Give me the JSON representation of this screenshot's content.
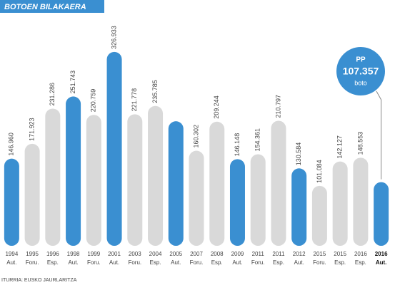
{
  "chart_data": {
    "type": "bar",
    "title": "BOTOEN BILAKAERA",
    "categories": [
      [
        "1994",
        "Aut."
      ],
      [
        "1995",
        "Foru."
      ],
      [
        "1996",
        "Esp."
      ],
      [
        "1998",
        "Aut."
      ],
      [
        "1999",
        "Foru."
      ],
      [
        "2001",
        "Aut."
      ],
      [
        "2003",
        "Foru."
      ],
      [
        "2004",
        "Esp."
      ],
      [
        "2005",
        "Aut."
      ],
      [
        "2007",
        "Foru."
      ],
      [
        "2008",
        "Esp."
      ],
      [
        "2009",
        "Aut."
      ],
      [
        "2011",
        "Foru."
      ],
      [
        "2011",
        "Esp."
      ],
      [
        "2012",
        "Aut."
      ],
      [
        "2015",
        "Foru."
      ],
      [
        "2015",
        "Esp."
      ],
      [
        "2016",
        "Esp."
      ],
      [
        "2016",
        "Aut."
      ]
    ],
    "values": [
      146960,
      171923,
      231286,
      251743,
      220759,
      326933,
      221778,
      235785,
      210000,
      160302,
      209244,
      146148,
      154361,
      210797,
      130584,
      101084,
      142127,
      148553,
      107357
    ],
    "value_labels": [
      "146.960",
      "171.923",
      "231.286",
      "251.743",
      "220.759",
      "326.933",
      "221.778",
      "235.785",
      null,
      "160.302",
      "209.244",
      "146.148",
      "154.361",
      "210.797",
      "130.584",
      "101.084",
      "142.127",
      "148.553",
      "107.357"
    ],
    "colors": [
      "#3a8fd1",
      "#d9d9d9",
      "#d9d9d9",
      "#3a8fd1",
      "#d9d9d9",
      "#3a8fd1",
      "#d9d9d9",
      "#d9d9d9",
      "#3a8fd1",
      "#d9d9d9",
      "#d9d9d9",
      "#3a8fd1",
      "#d9d9d9",
      "#d9d9d9",
      "#3a8fd1",
      "#d9d9d9",
      "#d9d9d9",
      "#d9d9d9",
      "#3a8fd1"
    ],
    "ylim": [
      0,
      400000
    ],
    "highlight": {
      "party": "PP",
      "unit": "boto"
    },
    "source": "ITURRIA: EUSKO JAURLARITZA"
  }
}
